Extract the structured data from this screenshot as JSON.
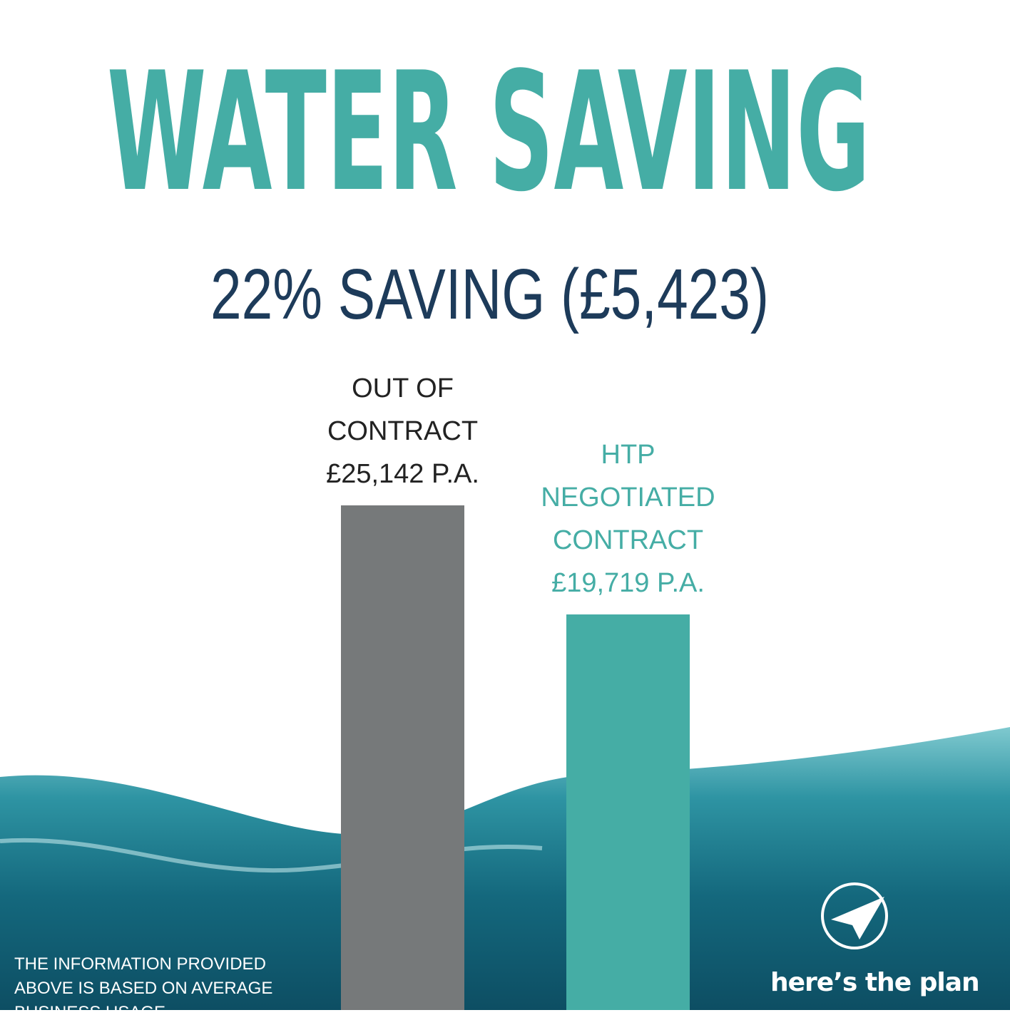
{
  "chart_data": {
    "type": "bar",
    "title": "WATER SAVING",
    "subtitle": "22% SAVING (£5,423)",
    "categories": [
      "OUT OF CONTRACT",
      "HTP NEGOTIATED CONTRACT"
    ],
    "values": [
      25142,
      19719
    ],
    "value_labels": [
      "£25,142 P.A.",
      "£19,719 P.A."
    ],
    "colors": [
      "#76797a",
      "#45ada5"
    ],
    "annotation": "THE INFORMATION PROVIDED ABOVE IS BASED ON AVERAGE BUSINESS USAGE",
    "logo": "here’s the plan"
  }
}
